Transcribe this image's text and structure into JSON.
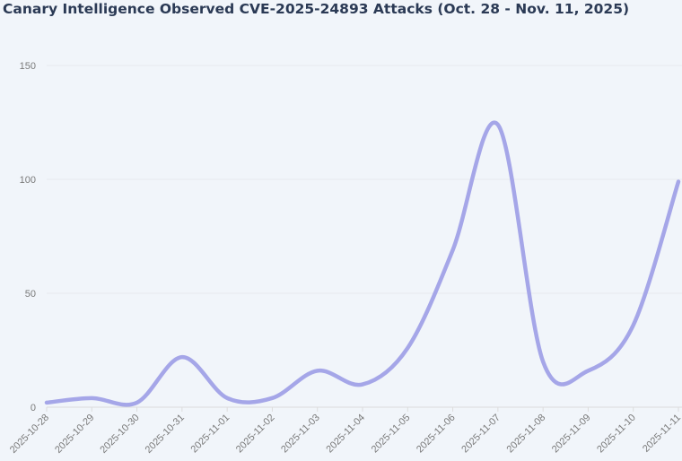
{
  "chart_data": {
    "type": "line",
    "title": "Canary Intelligence Observed CVE-2025-24893 Attacks (Oct. 28 - Nov. 11, 2025)",
    "xlabel": "",
    "ylabel": "",
    "categories": [
      "2025-10-28",
      "2025-10-29",
      "2025-10-30",
      "2025-10-31",
      "2025-11-01",
      "2025-11-02",
      "2025-11-03",
      "2025-11-04",
      "2025-11-05",
      "2025-11-06",
      "2025-11-07",
      "2025-11-08",
      "2025-11-09",
      "2025-11-10",
      "2025-11-11"
    ],
    "values": [
      2,
      4,
      2,
      22,
      4,
      4,
      16,
      10,
      26,
      69,
      124,
      20,
      16,
      36,
      99
    ],
    "ylim": [
      0,
      150
    ],
    "yticks": [
      0,
      50,
      100,
      150
    ],
    "grid": true,
    "smooth": true,
    "line_color": "#a5a6e8"
  }
}
